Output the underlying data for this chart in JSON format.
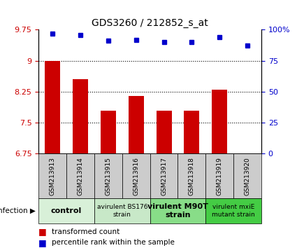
{
  "title": "GDS3260 / 212852_s_at",
  "samples": [
    "GSM213913",
    "GSM213914",
    "GSM213915",
    "GSM213916",
    "GSM213917",
    "GSM213918",
    "GSM213919",
    "GSM213920"
  ],
  "bar_values": [
    9.0,
    8.55,
    7.8,
    8.15,
    7.8,
    7.8,
    8.3,
    6.75
  ],
  "percentile_values": [
    97,
    96,
    91,
    92,
    90,
    90,
    94,
    87
  ],
  "bar_color": "#cc0000",
  "dot_color": "#0000cc",
  "ylim_left": [
    6.75,
    9.75
  ],
  "ylim_right": [
    0,
    100
  ],
  "yticks_left": [
    6.75,
    7.5,
    8.25,
    9.0,
    9.75
  ],
  "yticks_right": [
    0,
    25,
    50,
    75,
    100
  ],
  "ytick_labels_left": [
    "6.75",
    "7.5",
    "8.25",
    "9",
    "9.75"
  ],
  "ytick_labels_right": [
    "0",
    "25",
    "50",
    "75",
    "100%"
  ],
  "hlines": [
    7.5,
    8.25,
    9.0
  ],
  "groups": [
    {
      "label": "control",
      "start": 0,
      "end": 2,
      "color": "#d8f0d8",
      "text_size": 8,
      "bold": true
    },
    {
      "label": "avirulent BS176\nstrain",
      "start": 2,
      "end": 4,
      "color": "#c8e8c8",
      "text_size": 6.5,
      "bold": false
    },
    {
      "label": "virulent M90T\nstrain",
      "start": 4,
      "end": 6,
      "color": "#88dd88",
      "text_size": 8,
      "bold": true
    },
    {
      "label": "virulent mxiE\nmutant strain",
      "start": 6,
      "end": 8,
      "color": "#44cc44",
      "text_size": 6.5,
      "bold": false
    }
  ],
  "infection_label": "infection",
  "legend_bar_label": "transformed count",
  "legend_dot_label": "percentile rank within the sample",
  "tick_label_color_left": "#cc0000",
  "tick_label_color_right": "#0000cc",
  "sample_box_color": "#cccccc",
  "background_color": "#ffffff"
}
